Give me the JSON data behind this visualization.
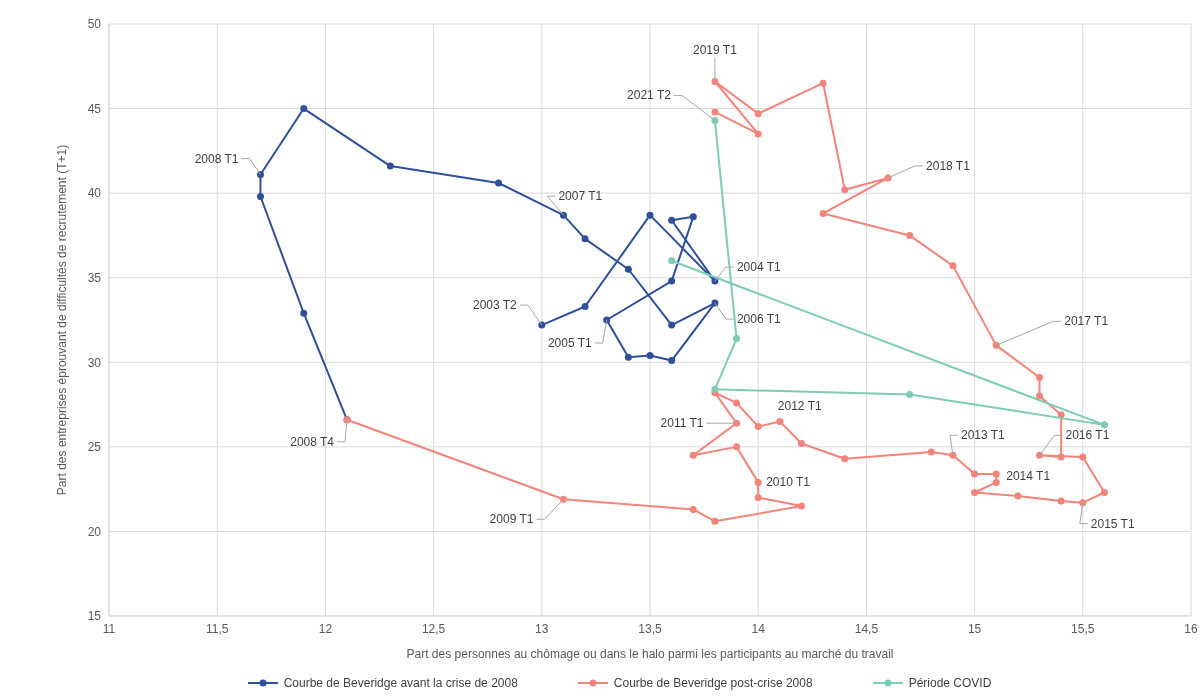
{
  "chart_data": {
    "type": "line",
    "xlabel": "Part des personnes au chômage ou dans le halo parmi les participants au marché du travail",
    "ylabel": "Part des entreprises éprouvant de difficultés de recrutement (T+1)",
    "xlim": [
      11,
      16
    ],
    "xticks": [
      11,
      {
        "value": 11.5,
        "label": "11,5"
      },
      12,
      {
        "value": 12.5,
        "label": "12,5"
      },
      13,
      {
        "value": 13.5,
        "label": "13,5"
      },
      14,
      {
        "value": 14.5,
        "label": "14,5"
      },
      15,
      {
        "value": 15.5,
        "label": "15,5"
      },
      16
    ],
    "ylim": [
      15,
      50
    ],
    "yticks": [
      15,
      20,
      25,
      30,
      35,
      40,
      45,
      50
    ],
    "grid": true,
    "legend": "bottom",
    "marker": "circle",
    "line_style": "solid",
    "series": [
      {
        "name": "Courbe de Beveridge avant la crise de 2008",
        "color": "#2f4f9a",
        "x": [
          13.0,
          13.2,
          13.5,
          13.8,
          13.6,
          13.7,
          13.6,
          13.3,
          13.4,
          13.5,
          13.6,
          13.8,
          13.6,
          13.4,
          13.2,
          13.1,
          12.8,
          12.3,
          11.9,
          11.7,
          11.7,
          11.9,
          12.1
        ],
        "values": [
          32.2,
          33.3,
          38.7,
          34.8,
          38.4,
          38.6,
          34.8,
          32.5,
          30.3,
          30.4,
          30.1,
          33.5,
          32.2,
          35.5,
          37.3,
          38.7,
          40.6,
          41.6,
          45.0,
          41.1,
          39.8,
          32.9,
          26.6
        ]
      },
      {
        "name": "Courbe de Beveridge post-crise 2008",
        "color": "#f4837a",
        "x": [
          12.1,
          13.1,
          13.7,
          13.8,
          14.2,
          14.0,
          14.0,
          13.9,
          13.7,
          13.9,
          13.8,
          13.9,
          14.0,
          14.1,
          14.2,
          14.4,
          14.8,
          14.9,
          15.0,
          15.1,
          15.1,
          15.0,
          15.2,
          15.4,
          15.5,
          15.6,
          15.5,
          15.3,
          15.4,
          15.4,
          15.3,
          15.3,
          15.1,
          14.9,
          14.7,
          14.3,
          14.6,
          14.4,
          14.3,
          14.0,
          13.8,
          14.0,
          13.8
        ],
        "values": [
          26.6,
          21.9,
          21.3,
          20.6,
          21.5,
          22.0,
          22.9,
          25.0,
          24.5,
          26.4,
          28.2,
          27.6,
          26.2,
          26.5,
          25.2,
          24.3,
          24.7,
          24.5,
          23.4,
          23.4,
          22.9,
          22.3,
          22.1,
          21.8,
          21.7,
          22.3,
          24.4,
          24.5,
          24.4,
          26.9,
          28.0,
          29.1,
          31.0,
          35.7,
          37.5,
          38.8,
          40.9,
          40.2,
          46.5,
          44.7,
          46.6,
          43.5,
          44.8
        ]
      },
      {
        "name": "Période COVID",
        "color": "#7ecbb8",
        "x": [
          13.6,
          15.6,
          14.7,
          13.8,
          13.9,
          13.8
        ],
        "values": [
          36.0,
          26.3,
          28.1,
          28.4,
          31.4,
          44.3
        ]
      }
    ],
    "annotations": [
      {
        "text": "2003 T2",
        "x": 13.0,
        "y": 32.2
      },
      {
        "text": "2004 T1",
        "x": 13.8,
        "y": 34.8
      },
      {
        "text": "2005 T1",
        "x": 13.3,
        "y": 32.5
      },
      {
        "text": "2006 T1",
        "x": 13.8,
        "y": 33.5
      },
      {
        "text": "2007 T1",
        "x": 13.1,
        "y": 38.7
      },
      {
        "text": "2008 T1",
        "x": 11.7,
        "y": 41.1
      },
      {
        "text": "2008 T4",
        "x": 12.1,
        "y": 26.6
      },
      {
        "text": "2009 T1",
        "x": 13.1,
        "y": 21.9
      },
      {
        "text": "2010 T1",
        "x": 14.0,
        "y": 22.9
      },
      {
        "text": "2011 T1",
        "x": 13.9,
        "y": 26.4
      },
      {
        "text": "2012 T1",
        "x": 14.1,
        "y": 26.5
      },
      {
        "text": "2013 T1",
        "x": 14.9,
        "y": 24.5
      },
      {
        "text": "2014 T1",
        "x": 15.1,
        "y": 22.9
      },
      {
        "text": "2015 T1",
        "x": 15.5,
        "y": 21.7
      },
      {
        "text": "2016 T1",
        "x": 15.3,
        "y": 24.5
      },
      {
        "text": "2017 T1",
        "x": 15.1,
        "y": 31.0
      },
      {
        "text": "2018 T1",
        "x": 14.6,
        "y": 40.9
      },
      {
        "text": "2019 T1",
        "x": 13.8,
        "y": 46.6
      },
      {
        "text": "2021 T2",
        "x": 13.8,
        "y": 44.3
      }
    ]
  }
}
